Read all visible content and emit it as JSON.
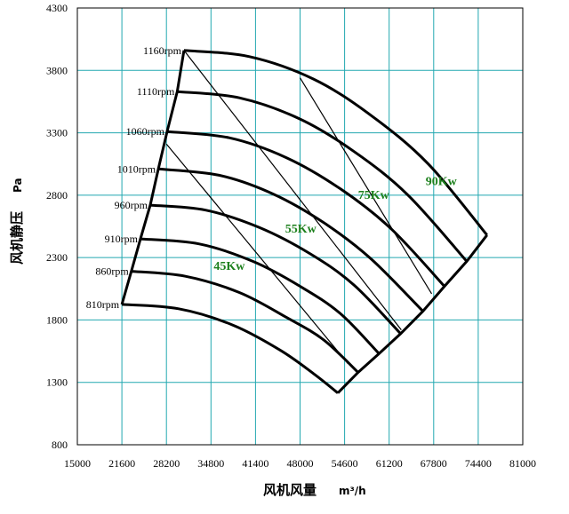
{
  "chart_data": {
    "type": "line",
    "xlabel": "风机风量",
    "xunit": "m³/h",
    "ylabel": "风机静压",
    "yunit": "Pa",
    "xlim": [
      15000,
      81000
    ],
    "ylim": [
      800,
      4300
    ],
    "xticks": [
      "15000",
      "21600",
      "28200",
      "34800",
      "41400",
      "48000",
      "54600",
      "61200",
      "67800",
      "74400",
      "81000"
    ],
    "yticks": [
      "800",
      "1300",
      "1800",
      "2300",
      "2800",
      "3300",
      "3800",
      "4300"
    ],
    "grid": true,
    "grid_color": "#22a8b0",
    "series": [
      {
        "name": "810rpm",
        "x": [
          21600,
          30000,
          38000,
          45000,
          50000,
          53600
        ],
        "y": [
          1925,
          1890,
          1760,
          1560,
          1370,
          1215
        ]
      },
      {
        "name": "860rpm",
        "x": [
          23000,
          31000,
          39000,
          46000,
          51500,
          56600
        ],
        "y": [
          2190,
          2150,
          2020,
          1820,
          1640,
          1380
        ]
      },
      {
        "name": "910rpm",
        "x": [
          24350,
          33000,
          41000,
          48000,
          54000,
          59700
        ],
        "y": [
          2450,
          2410,
          2270,
          2070,
          1850,
          1530
        ]
      },
      {
        "name": "960rpm",
        "x": [
          25800,
          34000,
          42000,
          49500,
          56000,
          62900
        ],
        "y": [
          2720,
          2680,
          2540,
          2330,
          2080,
          1690
        ]
      },
      {
        "name": "1010rpm",
        "x": [
          27000,
          36000,
          44000,
          51500,
          58500,
          66200
        ],
        "y": [
          3010,
          2960,
          2810,
          2580,
          2290,
          1870
        ]
      },
      {
        "name": "1060rpm",
        "x": [
          28300,
          37500,
          46000,
          54000,
          61500,
          69400
        ],
        "y": [
          3310,
          3260,
          3100,
          2850,
          2530,
          2070
        ]
      },
      {
        "name": "1110rpm",
        "x": [
          29800,
          39000,
          48000,
          56000,
          64000,
          72700
        ],
        "y": [
          3630,
          3580,
          3410,
          3150,
          2800,
          2270
        ]
      },
      {
        "name": "1160rpm",
        "x": [
          30800,
          40500,
          50000,
          58500,
          67000,
          75700
        ],
        "y": [
          3960,
          3910,
          3730,
          3440,
          3050,
          2480
        ]
      }
    ],
    "power_lines": [
      {
        "label": "45Kw",
        "x": [
          28200,
          55100
        ],
        "y": [
          3210,
          1450
        ]
      },
      {
        "label": "55Kw",
        "x": [
          30800,
          63000
        ],
        "y": [
          3960,
          1720
        ]
      },
      {
        "label": "75Kw",
        "x": [
          48000,
          67500
        ],
        "y": [
          3740,
          2010
        ]
      },
      {
        "label": "90Kw",
        "x": [
          75700
        ],
        "y": [
          2480
        ]
      }
    ],
    "annotations": [
      {
        "text": "45Kw",
        "x": 35200,
        "y": 2200
      },
      {
        "text": "55Kw",
        "x": 45800,
        "y": 2500
      },
      {
        "text": "75Kw",
        "x": 56600,
        "y": 2770
      },
      {
        "text": "90Kw",
        "x": 66600,
        "y": 2880
      }
    ],
    "annotation_color": "#1b7f1b"
  }
}
